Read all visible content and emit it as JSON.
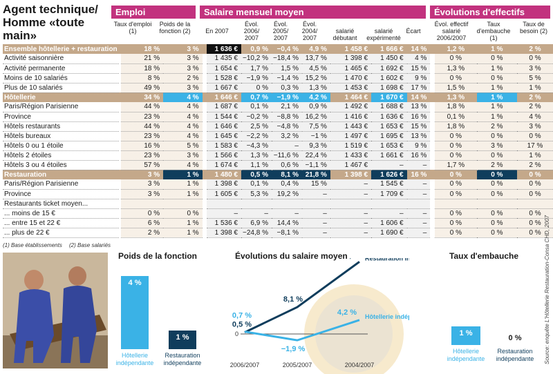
{
  "title": "Agent technique/ Homme «toute main»",
  "sections": {
    "emploi": "Emploi",
    "salaire": "Salaire mensuel moyen",
    "effectifs": "Évolutions d'effectifs"
  },
  "columns": [
    "Taux d'emploi (1)",
    "Poids de la fonction (2)",
    "En 2007",
    "Évol. 2006/ 2007",
    "Évol. 2005/ 2007",
    "Évol. 2004/ 2007",
    "salarié débutant",
    "salarié expérimenté",
    "Écart",
    "Évol. effectif salarié 2006/2007",
    "Taux d'embauche (1)",
    "Taux de besoin (2)"
  ],
  "rows": [
    {
      "label": "Ensemble hôtellerie + restauration",
      "type": "total",
      "values": [
        "18 %",
        "3 %",
        "1 636 €",
        "0,9 %",
        "−0,4 %",
        "4,9 %",
        "1 458 €",
        "1 666 €",
        "14 %",
        "1,2 %",
        "1 %",
        "2 %"
      ]
    },
    {
      "label": "Activité saisonnière",
      "type": "normal",
      "values": [
        "21 %",
        "3 %",
        "1 435 €",
        "−10,2 %",
        "−18,4 %",
        "13,7 %",
        "1 398 €",
        "1 450 €",
        "4 %",
        "0 %",
        "0 %",
        "0 %"
      ]
    },
    {
      "label": "Activité permanente",
      "type": "normal",
      "values": [
        "18 %",
        "3 %",
        "1 654 €",
        "1,7 %",
        "1,5 %",
        "4,5 %",
        "1 465 €",
        "1 692 €",
        "15 %",
        "1,3 %",
        "1 %",
        "3 %"
      ]
    },
    {
      "label": "Moins de 10 salariés",
      "type": "normal",
      "values": [
        "8 %",
        "2 %",
        "1 528 €",
        "−1,9 %",
        "−1,4 %",
        "15,2 %",
        "1 470 €",
        "1 602 €",
        "9 %",
        "0 %",
        "0 %",
        "5 %"
      ]
    },
    {
      "label": "Plus de 10 salariés",
      "type": "normal",
      "values": [
        "49 %",
        "3 %",
        "1 667 €",
        "0 %",
        "0,3 %",
        "1,3 %",
        "1 453 €",
        "1 698 €",
        "17 %",
        "1,5 %",
        "1 %",
        "1 %"
      ]
    },
    {
      "label": "Hôtellerie",
      "type": "hotellerie",
      "values": [
        "34 %",
        "4 %",
        "1 646 €",
        "0,7 %",
        "−1,9 %",
        "4,2 %",
        "1 464 €",
        "1 670 €",
        "14 %",
        "1,3 %",
        "1 %",
        "2 %"
      ]
    },
    {
      "label": "Paris/Région Parisienne",
      "type": "normal",
      "values": [
        "44 %",
        "4 %",
        "1 687 €",
        "0,1 %",
        "2,1 %",
        "0,9 %",
        "1 492 €",
        "1 688 €",
        "13 %",
        "1,8 %",
        "1 %",
        "2 %"
      ]
    },
    {
      "label": "Province",
      "type": "normal",
      "values": [
        "23 %",
        "4 %",
        "1 544 €",
        "−0,2 %",
        "−8,8 %",
        "16,2 %",
        "1 416 €",
        "1 636 €",
        "16 %",
        "0,1 %",
        "1 %",
        "4 %"
      ]
    },
    {
      "label": "Hôtels restaurants",
      "type": "normal",
      "values": [
        "44 %",
        "4 %",
        "1 646 €",
        "2,5 %",
        "−4,8 %",
        "7,5 %",
        "1 443 €",
        "1 653 €",
        "15 %",
        "1,8 %",
        "2 %",
        "3 %"
      ]
    },
    {
      "label": "Hôtels bureaux",
      "type": "normal",
      "values": [
        "23 %",
        "4 %",
        "1 645 €",
        "−2,2 %",
        "3,2 %",
        "−1 %",
        "1 497 €",
        "1 695 €",
        "13 %",
        "0 %",
        "0 %",
        "0 %"
      ]
    },
    {
      "label": "Hôtels 0 ou 1 étoile",
      "type": "normal",
      "values": [
        "16 %",
        "5 %",
        "1 583 €",
        "−4,3 %",
        "–",
        "9,3 %",
        "1 519 €",
        "1 653 €",
        "9 %",
        "0 %",
        "3 %",
        "17 %"
      ]
    },
    {
      "label": "Hôtels 2 étoiles",
      "type": "normal",
      "values": [
        "23 %",
        "3 %",
        "1 566 €",
        "1,3 %",
        "−11,6 %",
        "22,4 %",
        "1 433 €",
        "1 661 €",
        "16 %",
        "0 %",
        "0 %",
        "1 %"
      ]
    },
    {
      "label": "Hôtels 3 ou 4 étoiles",
      "type": "normal",
      "values": [
        "57 %",
        "4 %",
        "1 674 €",
        "1,1 %",
        "0,6 %",
        "−1,1 %",
        "1 467 €",
        "–",
        "–",
        "1,7 %",
        "2 %",
        "2 %"
      ]
    },
    {
      "label": "Restauration",
      "type": "restauration",
      "values": [
        "3 %",
        "1 %",
        "1 480 €",
        "0,5 %",
        "8,1 %",
        "21,8 %",
        "1 398 €",
        "1 626 €",
        "16 %",
        "0 %",
        "0 %",
        "0 %"
      ]
    },
    {
      "label": "Paris/Région Parisienne",
      "type": "normal",
      "values": [
        "3 %",
        "1 %",
        "1 398 €",
        "0,1 %",
        "0,4 %",
        "15 %",
        "–",
        "1 545 €",
        "–",
        "0 %",
        "0 %",
        "0 %"
      ]
    },
    {
      "label": "Province",
      "type": "normal",
      "values": [
        "3 %",
        "1 %",
        "1 605 €",
        "5,3 %",
        "19,2 %",
        "–",
        "–",
        "1 709 €",
        "–",
        "0 %",
        "0 %",
        "0 %"
      ]
    },
    {
      "label": "Restaurants ticket moyen...",
      "type": "normal",
      "values": [
        "",
        "",
        "",
        "",
        "",
        "",
        "",
        "",
        "",
        "",
        "",
        ""
      ]
    },
    {
      "label": "... moins de 15 €",
      "type": "normal",
      "values": [
        "0 %",
        "0 %",
        "–",
        "–",
        "–",
        "–",
        "–",
        "–",
        "–",
        "0 %",
        "0 %",
        "0 %"
      ]
    },
    {
      "label": "... entre 15 et 22 €",
      "type": "normal",
      "values": [
        "6 %",
        "1 %",
        "1 536 €",
        "6,9 %",
        "14,4 %",
        "–",
        "–",
        "1 606 €",
        "–",
        "0 %",
        "0 %",
        "0 %"
      ]
    },
    {
      "label": "... plus de 22 €",
      "type": "normal",
      "values": [
        "2 %",
        "1 %",
        "1 398 €",
        "−24,8 %",
        "−8,1 %",
        "–",
        "–",
        "1 690 €",
        "–",
        "0 %",
        "0 %",
        "0 %"
      ]
    }
  ],
  "footnotes": {
    "note1": "(1) Base établissements",
    "note2": "(2) Base salariés"
  },
  "source": "Source: enquête L'Hôtellerie Restauration-Consa CHD, 2007",
  "chart_data": [
    {
      "type": "bar",
      "title": "Poids de la fonction",
      "categories": [
        "Hôtellerie indépendante",
        "Restauration indépendante"
      ],
      "values": [
        4,
        1
      ],
      "value_labels": [
        "4 %",
        "1 %"
      ],
      "colors": [
        "#3ab2e6",
        "#0f3d5c"
      ]
    },
    {
      "type": "line",
      "title": "Évolutions du salaire moyen",
      "x": [
        "2006/2007",
        "2005/2007",
        "2004/2007"
      ],
      "zero_label": "0",
      "series": [
        {
          "name": "Restauration indépendante",
          "values": [
            0.5,
            8.1,
            21.8
          ],
          "labels": [
            "0,5 %",
            "8,1 %",
            "21,8 %"
          ],
          "color": "#0f3d5c"
        },
        {
          "name": "Hôtellerie indépendante",
          "values": [
            0.7,
            -1.9,
            4.2
          ],
          "labels": [
            "0,7 %",
            "−1,9 %",
            "4,2 %"
          ],
          "color": "#3ab2e6"
        }
      ]
    },
    {
      "type": "bar",
      "title": "Taux d'embauche",
      "categories": [
        "Hôtellerie indépendante",
        "Restauration indépendante"
      ],
      "values": [
        1,
        0
      ],
      "value_labels": [
        "1 %",
        "0 %"
      ],
      "colors": [
        "#3ab2e6",
        "#0f3d5c"
      ]
    }
  ],
  "colors": {
    "magenta": "#c2327e",
    "tan": "#c4a88a",
    "light_blue": "#3ab2e6",
    "navy": "#0f3d5c"
  }
}
